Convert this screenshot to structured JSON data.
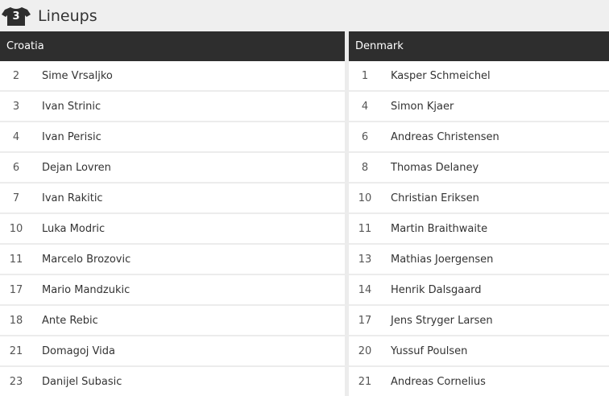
{
  "header": {
    "title": "Lineups",
    "icon": "shirt-icon",
    "shirt_number": "3"
  },
  "teams": [
    {
      "name": "Croatia",
      "players": [
        {
          "number": "2",
          "name": "Sime Vrsaljko"
        },
        {
          "number": "3",
          "name": "Ivan Strinic"
        },
        {
          "number": "4",
          "name": "Ivan Perisic"
        },
        {
          "number": "6",
          "name": "Dejan Lovren"
        },
        {
          "number": "7",
          "name": "Ivan Rakitic"
        },
        {
          "number": "10",
          "name": "Luka Modric"
        },
        {
          "number": "11",
          "name": "Marcelo Brozovic"
        },
        {
          "number": "17",
          "name": "Mario Mandzukic"
        },
        {
          "number": "18",
          "name": "Ante Rebic"
        },
        {
          "number": "21",
          "name": "Domagoj Vida"
        },
        {
          "number": "23",
          "name": "Danijel Subasic"
        }
      ]
    },
    {
      "name": "Denmark",
      "players": [
        {
          "number": "1",
          "name": "Kasper Schmeichel"
        },
        {
          "number": "4",
          "name": "Simon Kjaer"
        },
        {
          "number": "6",
          "name": "Andreas Christensen"
        },
        {
          "number": "8",
          "name": "Thomas Delaney"
        },
        {
          "number": "10",
          "name": "Christian Eriksen"
        },
        {
          "number": "11",
          "name": "Martin Braithwaite"
        },
        {
          "number": "13",
          "name": "Mathias Joergensen"
        },
        {
          "number": "14",
          "name": "Henrik Dalsgaard"
        },
        {
          "number": "17",
          "name": "Jens Stryger Larsen"
        },
        {
          "number": "20",
          "name": "Yussuf Poulsen"
        },
        {
          "number": "21",
          "name": "Andreas Cornelius"
        }
      ]
    }
  ],
  "colors": {
    "header_bg": "#2e2e2e",
    "row_bg": "#ffffff",
    "page_bg": "#efefef"
  }
}
